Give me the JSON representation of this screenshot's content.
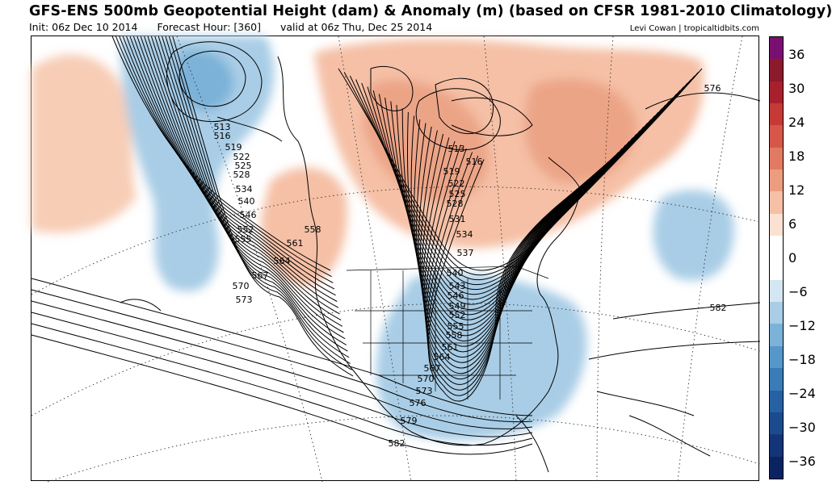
{
  "header": {
    "title": "GFS-ENS 500mb Geopotential Height (dam) & Anomaly (m) (based on CFSR 1981-2010 Climatology)",
    "init": "Init: 06z Dec 10 2014",
    "forecast_hour": "Forecast Hour: [360]",
    "valid": "valid at 06z Thu, Dec 25 2014",
    "credit": "Levi Cowan | tropicaltidbits.com"
  },
  "colorbar": {
    "colors": [
      "#7a0f72",
      "#8b1a2a",
      "#a8202d",
      "#c53a36",
      "#d6574a",
      "#e27a63",
      "#ec9d80",
      "#f5c0a6",
      "#fbe1d2",
      "#ffffff",
      "#ffffff",
      "#d4e6f2",
      "#a9cde6",
      "#7cb2d8",
      "#5597c8",
      "#3a7cb7",
      "#2761a3",
      "#1c4a8e",
      "#133577",
      "#0b2461"
    ],
    "labels": [
      "36",
      "30",
      "24",
      "18",
      "12",
      "6",
      "0",
      "−6",
      "−12",
      "−18",
      "−24",
      "−30",
      "−36"
    ]
  },
  "contour_labels": {
    "west_chain": [
      "513",
      "516",
      "519",
      "522",
      "525",
      "528",
      "534",
      "540",
      "546",
      "552",
      "555"
    ],
    "west_south": [
      "558",
      "561",
      "564",
      "567",
      "570",
      "573"
    ],
    "east_chain": [
      "513",
      "516",
      "519",
      "522",
      "525",
      "528",
      "531",
      "534",
      "537",
      "540",
      "543",
      "546",
      "549",
      "552",
      "555",
      "558",
      "561",
      "564",
      "567",
      "570",
      "573",
      "576",
      "579",
      "582"
    ],
    "atlantic": [
      "576",
      "582"
    ]
  }
}
